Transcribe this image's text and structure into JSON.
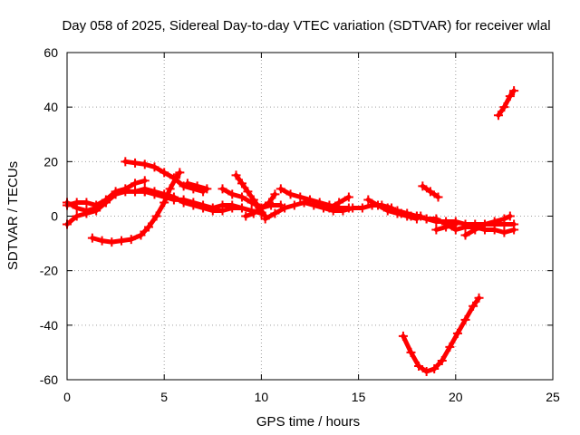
{
  "chart_data": {
    "type": "scatter",
    "title": "Day 058 of 2025, Sidereal Day-to-day VTEC variation (SDTVAR) for receiver wlal",
    "xlabel": "GPS time / hours",
    "ylabel": "SDTVAR / TECUs",
    "xlim": [
      0,
      25
    ],
    "ylim": [
      -60,
      60
    ],
    "x_ticks": [
      "0",
      "5",
      "10",
      "15",
      "20",
      "25"
    ],
    "y_ticks": [
      "60",
      "40",
      "20",
      "0",
      "-20",
      "-40",
      "-60"
    ],
    "grid": true,
    "marker": "plus",
    "color": "#ff0000",
    "series": [
      {
        "points": [
          [
            0.0,
            4
          ],
          [
            0.5,
            5
          ],
          [
            1.0,
            5
          ],
          [
            1.5,
            4
          ],
          [
            2.0,
            6
          ],
          [
            2.5,
            9
          ],
          [
            3.0,
            10
          ],
          [
            3.5,
            12
          ],
          [
            4.0,
            13
          ]
        ]
      },
      {
        "points": [
          [
            0.0,
            -3
          ],
          [
            0.5,
            0
          ],
          [
            1.0,
            1
          ],
          [
            1.5,
            2
          ],
          [
            2.0,
            5
          ],
          [
            2.5,
            8
          ],
          [
            3.0,
            9
          ],
          [
            3.5,
            9
          ],
          [
            4.0,
            9
          ]
        ]
      },
      {
        "points": [
          [
            0.0,
            5
          ],
          [
            0.5,
            3
          ],
          [
            1.0,
            2
          ],
          [
            1.5,
            3
          ],
          [
            2.0,
            5
          ]
        ]
      },
      {
        "points": [
          [
            1.3,
            -8
          ],
          [
            1.8,
            -9
          ],
          [
            2.3,
            -9.5
          ],
          [
            2.8,
            -9
          ],
          [
            3.3,
            -8.5
          ],
          [
            3.8,
            -7
          ],
          [
            4.2,
            -4
          ],
          [
            4.6,
            0
          ],
          [
            5.0,
            5
          ],
          [
            5.3,
            10
          ],
          [
            5.6,
            14
          ],
          [
            5.8,
            16
          ]
        ]
      },
      {
        "points": [
          [
            3.0,
            20
          ],
          [
            3.5,
            19.5
          ],
          [
            4.0,
            19
          ],
          [
            4.5,
            18
          ],
          [
            5.0,
            16
          ],
          [
            5.5,
            14
          ],
          [
            6.0,
            11
          ],
          [
            6.5,
            10
          ],
          [
            7.0,
            9
          ]
        ]
      },
      {
        "points": [
          [
            3.5,
            9
          ],
          [
            4.0,
            10
          ],
          [
            4.5,
            9
          ],
          [
            5.0,
            8
          ],
          [
            5.5,
            7
          ],
          [
            6.0,
            5
          ],
          [
            6.5,
            4
          ],
          [
            7.0,
            3
          ],
          [
            7.5,
            2
          ],
          [
            8.0,
            2
          ],
          [
            8.5,
            3
          ],
          [
            9.0,
            3
          ]
        ]
      },
      {
        "points": [
          [
            4.0,
            9
          ],
          [
            4.5,
            8
          ],
          [
            5.0,
            7
          ],
          [
            5.5,
            6
          ],
          [
            6.0,
            6
          ],
          [
            6.5,
            5
          ],
          [
            7.0,
            4
          ],
          [
            7.5,
            3
          ],
          [
            8.0,
            4
          ],
          [
            8.5,
            4
          ],
          [
            9.0,
            3
          ],
          [
            9.5,
            2
          ],
          [
            10.0,
            1
          ]
        ]
      },
      {
        "points": [
          [
            6.2,
            12
          ],
          [
            6.7,
            11
          ],
          [
            7.2,
            10
          ]
        ]
      },
      {
        "points": [
          [
            8.0,
            10
          ],
          [
            8.5,
            8
          ],
          [
            9.0,
            7
          ],
          [
            9.5,
            5
          ],
          [
            10.0,
            3
          ],
          [
            10.5,
            4
          ],
          [
            11.0,
            4
          ]
        ]
      },
      {
        "points": [
          [
            8.7,
            15
          ],
          [
            9.0,
            12
          ],
          [
            9.3,
            9
          ],
          [
            9.6,
            6
          ],
          [
            9.9,
            3
          ],
          [
            10.2,
            0
          ]
        ]
      },
      {
        "points": [
          [
            9.2,
            0
          ],
          [
            9.6,
            1
          ],
          [
            10.0,
            3
          ],
          [
            10.4,
            5
          ],
          [
            10.7,
            8
          ]
        ]
      },
      {
        "points": [
          [
            10.2,
            -1
          ],
          [
            10.7,
            1
          ],
          [
            11.2,
            3
          ],
          [
            11.7,
            4
          ],
          [
            12.2,
            5
          ],
          [
            12.7,
            4
          ],
          [
            13.2,
            3
          ],
          [
            13.7,
            2
          ],
          [
            14.2,
            2
          ],
          [
            14.7,
            3
          ],
          [
            15.2,
            3
          ],
          [
            15.7,
            4
          ],
          [
            16.2,
            4
          ],
          [
            16.7,
            3
          ],
          [
            17.2,
            1
          ],
          [
            17.7,
            0
          ],
          [
            18.2,
            0
          ]
        ]
      },
      {
        "points": [
          [
            11.0,
            10
          ],
          [
            11.5,
            8
          ],
          [
            12.0,
            7
          ],
          [
            12.5,
            6
          ],
          [
            13.0,
            5
          ],
          [
            13.5,
            4
          ],
          [
            14.0,
            3
          ],
          [
            14.5,
            3
          ]
        ]
      },
      {
        "points": [
          [
            13.5,
            3
          ],
          [
            14.0,
            5
          ],
          [
            14.5,
            7
          ]
        ]
      },
      {
        "points": [
          [
            15.5,
            6
          ],
          [
            16.0,
            4
          ],
          [
            16.5,
            2
          ],
          [
            17.0,
            1
          ],
          [
            17.5,
            0
          ],
          [
            18.0,
            -1
          ]
        ]
      },
      {
        "points": [
          [
            16.5,
            3
          ],
          [
            17.0,
            2
          ],
          [
            17.5,
            1
          ],
          [
            18.0,
            0
          ],
          [
            18.5,
            -1
          ],
          [
            19.0,
            -2
          ],
          [
            19.5,
            -2
          ],
          [
            20.0,
            -2
          ],
          [
            20.5,
            -3
          ],
          [
            21.0,
            -3
          ],
          [
            21.5,
            -3
          ],
          [
            22.0,
            -3
          ],
          [
            22.5,
            -3
          ],
          [
            23.0,
            -3
          ]
        ]
      },
      {
        "points": [
          [
            18.0,
            0
          ],
          [
            18.5,
            -1
          ],
          [
            19.0,
            -1
          ],
          [
            19.5,
            -3
          ],
          [
            20.0,
            -5
          ],
          [
            20.5,
            -4
          ],
          [
            21.0,
            -4
          ],
          [
            21.5,
            -5
          ],
          [
            22.0,
            -5
          ],
          [
            22.5,
            -6
          ],
          [
            23.0,
            -5
          ]
        ]
      },
      {
        "points": [
          [
            19.0,
            -5
          ],
          [
            19.5,
            -4
          ],
          [
            20.0,
            -3
          ]
        ]
      },
      {
        "points": [
          [
            20.5,
            -7
          ],
          [
            21.0,
            -5
          ],
          [
            21.5,
            -3
          ],
          [
            22.0,
            -2
          ],
          [
            22.5,
            -1
          ],
          [
            22.8,
            0
          ]
        ]
      },
      {
        "points": [
          [
            18.3,
            11
          ],
          [
            18.7,
            9
          ],
          [
            19.1,
            7
          ]
        ]
      },
      {
        "points": [
          [
            17.3,
            -44
          ],
          [
            17.7,
            -50
          ],
          [
            18.1,
            -55
          ],
          [
            18.5,
            -57
          ],
          [
            18.9,
            -56
          ],
          [
            19.3,
            -53
          ],
          [
            19.7,
            -48
          ],
          [
            20.1,
            -43
          ],
          [
            20.5,
            -38
          ],
          [
            20.9,
            -33
          ],
          [
            21.2,
            -30
          ]
        ]
      },
      {
        "points": [
          [
            22.2,
            37
          ],
          [
            22.5,
            40
          ],
          [
            22.8,
            44
          ],
          [
            23.0,
            46
          ]
        ]
      }
    ]
  }
}
